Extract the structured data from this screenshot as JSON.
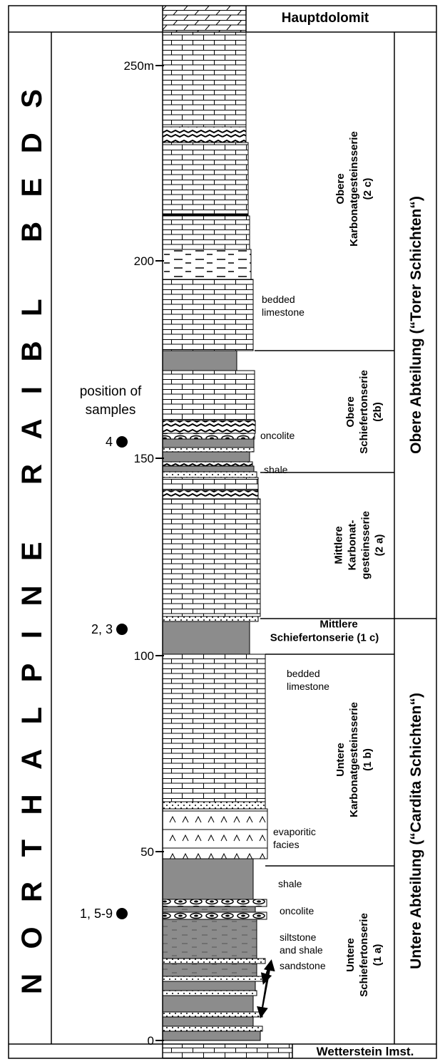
{
  "header": {
    "top_unit": "Hauptdolomit",
    "bottom_unit": "Wetterstein lmst."
  },
  "title": "NORTHALPINE RAIBL BEDS",
  "scale": {
    "ticks": [
      "250m",
      "200",
      "150",
      "100",
      "50",
      "0"
    ]
  },
  "samples": {
    "label": [
      "position of",
      "samples"
    ],
    "points": [
      "4",
      "2, 3",
      "1, 5-9"
    ]
  },
  "lithology_labels": [
    [
      "bedded",
      "limestone"
    ],
    [
      "oncolite"
    ],
    [
      "shale"
    ],
    [
      "bedded",
      "limestone"
    ],
    [
      "evaporitic",
      "facies"
    ],
    [
      "shale"
    ],
    [
      "oncolite"
    ],
    [
      "siltstone",
      "and shale"
    ],
    [
      "sandstone"
    ]
  ],
  "formations": [
    [
      "Obere",
      "Karbonatgesteinsserie",
      "(2 c)"
    ],
    [
      "Obere",
      "Schiefertonserie",
      "(2b)"
    ],
    [
      "Mittlere",
      "Karbonat-",
      "gesteinsserie",
      "(2 a)"
    ],
    [
      "Mittlere",
      "Schiefertonserie (1 c)"
    ],
    [
      "Untere",
      "Karbonatgesteinsserie",
      "(1 b)"
    ],
    [
      "Untere",
      "Schiefertonserie",
      "(1 a)"
    ]
  ],
  "divisions": [
    "Obere Abteilung (“Torer Schichten“)",
    "Untere Abteilung (“Cardita Schichten“)"
  ]
}
